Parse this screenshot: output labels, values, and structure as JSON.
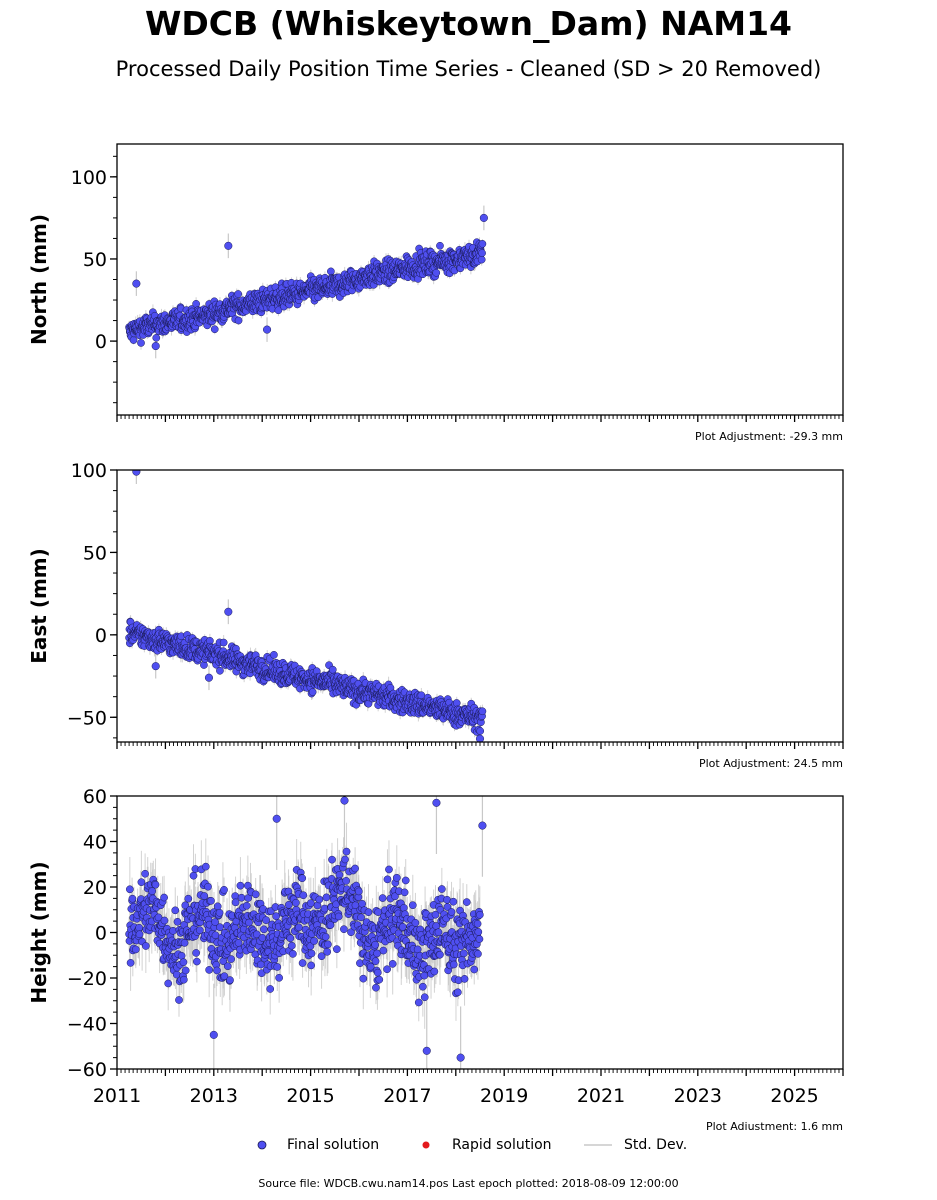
{
  "title": "WDCB (Whiskeytown_Dam) NAM14",
  "subtitle": "Processed Daily Position Time Series - Cleaned (SD > 20 Removed)",
  "colors": {
    "final": "#4f4ff0",
    "final_edge": "#1a1a55",
    "rapid": "#e31a1c",
    "stddev": "#c8c8c8",
    "axis": "#000000"
  },
  "legend": {
    "final_label": "Final solution",
    "rapid_label": "Rapid solution",
    "stddev_label": "Std. Dev."
  },
  "footer": "Source file: WDCB.cwu.nam14.pos  Last epoch plotted: 2018-08-09 12:00:00",
  "chart_data": [
    {
      "type": "scatter",
      "ylabel": "North (mm)",
      "adjustment": "Plot Adjustment: -29.3 mm",
      "xlim": [
        2011,
        2026
      ],
      "ylim": [
        -45,
        120
      ],
      "yticks": [
        0,
        50,
        100
      ],
      "yticklabels": [
        "0",
        "50",
        "100"
      ],
      "show_xticklabels": false,
      "series": [
        {
          "x": [
            2011.25,
            2011.4,
            2011.6,
            2011.8,
            2012.0,
            2012.2,
            2012.4,
            2012.6,
            2012.8,
            2013.0,
            2013.2,
            2013.4,
            2013.6,
            2013.8,
            2014.0,
            2014.2,
            2014.4,
            2014.6,
            2014.8,
            2015.0,
            2015.2,
            2015.4,
            2015.6,
            2015.8,
            2016.0,
            2016.2,
            2016.4,
            2016.6,
            2016.8,
            2017.0,
            2017.2,
            2017.4,
            2017.6,
            2017.8,
            2018.0,
            2018.2,
            2018.4,
            2018.55
          ],
          "y": [
            5,
            7,
            9,
            10,
            11,
            12,
            13,
            14,
            15,
            17,
            19,
            21,
            22,
            23,
            24,
            26,
            27,
            28,
            29,
            31,
            32,
            33,
            34,
            36,
            38,
            40,
            41,
            42,
            43,
            45,
            46,
            47,
            48,
            49,
            50,
            51,
            52,
            55
          ],
          "outliers": {
            "x": [
              2011.4,
              2013.3,
              2014.1,
              2011.8,
              2018.58
            ],
            "y": [
              35,
              58,
              7,
              -3,
              75
            ]
          }
        }
      ]
    },
    {
      "type": "scatter",
      "ylabel": "East (mm)",
      "adjustment": "Plot Adjustment: 24.5 mm",
      "xlim": [
        2011,
        2026
      ],
      "ylim": [
        -65,
        100
      ],
      "yticks": [
        -50,
        0,
        50,
        100
      ],
      "yticklabels": [
        "−50",
        "0",
        "50",
        "100"
      ],
      "show_xticklabels": false,
      "series": [
        {
          "x": [
            2011.25,
            2011.4,
            2011.6,
            2011.8,
            2012.0,
            2012.2,
            2012.4,
            2012.6,
            2012.8,
            2013.0,
            2013.2,
            2013.4,
            2013.6,
            2013.8,
            2014.0,
            2014.2,
            2014.4,
            2014.6,
            2014.8,
            2015.0,
            2015.2,
            2015.4,
            2015.6,
            2015.8,
            2016.0,
            2016.2,
            2016.4,
            2016.6,
            2016.8,
            2017.0,
            2017.2,
            2017.4,
            2017.6,
            2017.8,
            2018.0,
            2018.2,
            2018.4,
            2018.55
          ],
          "y": [
            2,
            0,
            -1,
            -3,
            -4,
            -6,
            -7,
            -9,
            -10,
            -11,
            -13,
            -15,
            -17,
            -18,
            -20,
            -22,
            -23,
            -24,
            -26,
            -27,
            -28,
            -29,
            -31,
            -33,
            -34,
            -35,
            -36,
            -38,
            -40,
            -41,
            -42,
            -43,
            -45,
            -46,
            -48,
            -49,
            -50,
            -51
          ],
          "outliers": {
            "x": [
              2011.4,
              2013.3,
              2011.8,
              2012.9,
              2018.5
            ],
            "y": [
              99,
              14,
              -19,
              -26,
              -63
            ]
          }
        }
      ]
    },
    {
      "type": "scatter",
      "ylabel": "Height (mm)",
      "adjustment": "Plot Adjustment: 1.6 mm",
      "xlim": [
        2011,
        2026
      ],
      "ylim": [
        -60,
        60
      ],
      "yticks": [
        -60,
        -40,
        -20,
        0,
        20,
        40,
        60
      ],
      "yticklabels": [
        "−60",
        "−40",
        "−20",
        "0",
        "20",
        "40",
        "60"
      ],
      "xticks": [
        2011,
        2013,
        2015,
        2017,
        2019,
        2021,
        2023,
        2025
      ],
      "xticklabels": [
        "2011",
        "2013",
        "2015",
        "2017",
        "2019",
        "2021",
        "2023",
        "2025"
      ],
      "show_xticklabels": true,
      "series": [
        {
          "x": [
            2011.25,
            2011.5,
            2011.75,
            2012.0,
            2012.25,
            2012.5,
            2012.75,
            2013.0,
            2013.25,
            2013.5,
            2013.75,
            2014.0,
            2014.25,
            2014.5,
            2014.75,
            2015.0,
            2015.25,
            2015.5,
            2015.75,
            2016.0,
            2016.25,
            2016.5,
            2016.75,
            2017.0,
            2017.25,
            2017.5,
            2017.75,
            2018.0,
            2018.25,
            2018.5
          ],
          "y": [
            -2,
            8,
            12,
            0,
            -10,
            3,
            10,
            2,
            -8,
            2,
            6,
            0,
            -5,
            5,
            10,
            2,
            5,
            15,
            20,
            5,
            -10,
            0,
            8,
            2,
            -12,
            -5,
            5,
            -8,
            -5,
            5
          ],
          "outliers": {
            "x": [
              2014.3,
              2015.7,
              2017.6,
              2013.0,
              2017.4,
              2018.1,
              2018.55
            ],
            "y": [
              50,
              58,
              57,
              -45,
              -52,
              -55,
              47
            ]
          }
        }
      ]
    }
  ]
}
